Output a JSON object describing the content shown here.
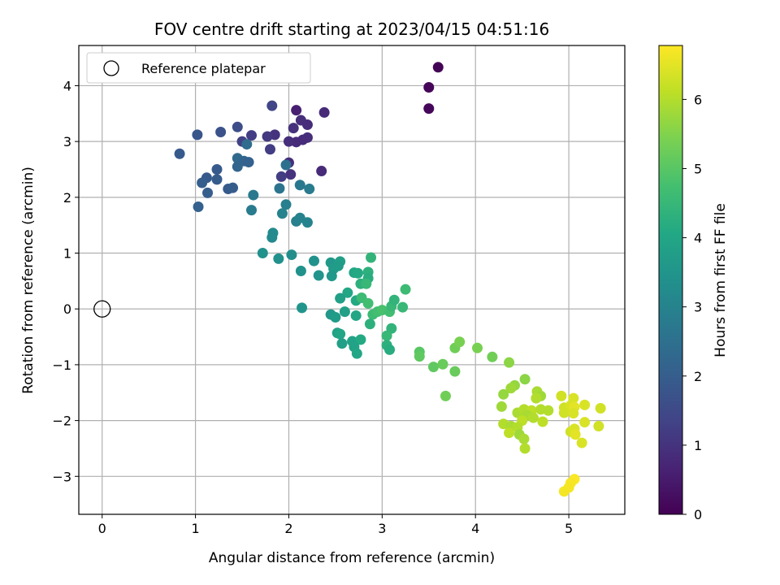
{
  "chart_data": {
    "type": "scatter",
    "title": "FOV centre drift starting at 2023/04/15 04:51:16",
    "xlabel": "Angular distance from reference (arcmin)",
    "ylabel": "Rotation from reference (arcmin)",
    "xlim": [
      -0.25,
      5.6
    ],
    "ylim": [
      -3.68,
      4.72
    ],
    "xticks": [
      0,
      1,
      2,
      3,
      4,
      5
    ],
    "yticks": [
      -3,
      -2,
      -1,
      0,
      1,
      2,
      3,
      4
    ],
    "grid": true,
    "legend": {
      "position": "top-left",
      "entries": [
        "Reference platepar"
      ]
    },
    "reference_point": {
      "x": 0,
      "y": 0,
      "label": "Reference platepar"
    },
    "colorbar": {
      "label": "Hours from first FF file",
      "colormap": "viridis",
      "range": [
        0,
        6.78
      ],
      "ticks": [
        0,
        1,
        2,
        3,
        4,
        5,
        6
      ]
    },
    "points": [
      {
        "x": 3.6,
        "y": 4.33,
        "c": 0.05
      },
      {
        "x": 3.5,
        "y": 3.97,
        "c": 0.1
      },
      {
        "x": 3.5,
        "y": 3.59,
        "c": 0.12
      },
      {
        "x": 2.08,
        "y": 3.56,
        "c": 0.6
      },
      {
        "x": 2.38,
        "y": 3.52,
        "c": 0.8
      },
      {
        "x": 2.13,
        "y": 3.38,
        "c": 0.9
      },
      {
        "x": 2.2,
        "y": 3.3,
        "c": 0.85
      },
      {
        "x": 2.05,
        "y": 3.24,
        "c": 0.95
      },
      {
        "x": 2.2,
        "y": 3.07,
        "c": 0.9
      },
      {
        "x": 2.15,
        "y": 3.03,
        "c": 0.85
      },
      {
        "x": 2.08,
        "y": 2.99,
        "c": 0.8
      },
      {
        "x": 2.0,
        "y": 3.0,
        "c": 0.9
      },
      {
        "x": 1.85,
        "y": 3.12,
        "c": 1.0
      },
      {
        "x": 1.77,
        "y": 3.09,
        "c": 1.1
      },
      {
        "x": 1.6,
        "y": 3.11,
        "c": 1.2
      },
      {
        "x": 1.5,
        "y": 3.0,
        "c": 1.3
      },
      {
        "x": 1.8,
        "y": 2.86,
        "c": 1.2
      },
      {
        "x": 2.0,
        "y": 2.62,
        "c": 0.9
      },
      {
        "x": 2.35,
        "y": 2.47,
        "c": 0.8
      },
      {
        "x": 2.02,
        "y": 2.41,
        "c": 1.0
      },
      {
        "x": 1.92,
        "y": 2.37,
        "c": 1.2
      },
      {
        "x": 1.82,
        "y": 3.64,
        "c": 1.4
      },
      {
        "x": 1.45,
        "y": 3.26,
        "c": 1.6
      },
      {
        "x": 1.27,
        "y": 3.17,
        "c": 1.7
      },
      {
        "x": 1.02,
        "y": 3.12,
        "c": 1.8
      },
      {
        "x": 0.83,
        "y": 2.78,
        "c": 1.9
      },
      {
        "x": 1.55,
        "y": 2.95,
        "c": 2.4
      },
      {
        "x": 1.45,
        "y": 2.7,
        "c": 2.3
      },
      {
        "x": 1.52,
        "y": 2.65,
        "c": 2.2
      },
      {
        "x": 1.57,
        "y": 2.63,
        "c": 2.1
      },
      {
        "x": 1.45,
        "y": 2.55,
        "c": 2.2
      },
      {
        "x": 1.23,
        "y": 2.5,
        "c": 1.9
      },
      {
        "x": 1.12,
        "y": 2.35,
        "c": 1.9
      },
      {
        "x": 1.07,
        "y": 2.26,
        "c": 2.0
      },
      {
        "x": 1.23,
        "y": 2.32,
        "c": 1.95
      },
      {
        "x": 1.35,
        "y": 2.15,
        "c": 1.9
      },
      {
        "x": 1.4,
        "y": 2.17,
        "c": 1.95
      },
      {
        "x": 1.13,
        "y": 2.08,
        "c": 2.0
      },
      {
        "x": 1.03,
        "y": 1.83,
        "c": 2.1
      },
      {
        "x": 1.62,
        "y": 2.04,
        "c": 2.7
      },
      {
        "x": 1.6,
        "y": 1.77,
        "c": 2.8
      },
      {
        "x": 1.97,
        "y": 2.58,
        "c": 2.5
      },
      {
        "x": 1.9,
        "y": 2.16,
        "c": 2.6
      },
      {
        "x": 2.12,
        "y": 2.22,
        "c": 2.7
      },
      {
        "x": 2.22,
        "y": 2.15,
        "c": 2.8
      },
      {
        "x": 1.97,
        "y": 1.87,
        "c": 2.9
      },
      {
        "x": 1.93,
        "y": 1.71,
        "c": 3.0
      },
      {
        "x": 2.08,
        "y": 1.57,
        "c": 2.9
      },
      {
        "x": 2.12,
        "y": 1.63,
        "c": 3.0
      },
      {
        "x": 2.2,
        "y": 1.55,
        "c": 3.0
      },
      {
        "x": 1.83,
        "y": 1.36,
        "c": 3.2
      },
      {
        "x": 1.82,
        "y": 1.28,
        "c": 3.2
      },
      {
        "x": 1.72,
        "y": 1.0,
        "c": 3.4
      },
      {
        "x": 1.89,
        "y": 0.9,
        "c": 3.4
      },
      {
        "x": 2.03,
        "y": 0.97,
        "c": 3.3
      },
      {
        "x": 2.13,
        "y": 0.68,
        "c": 3.4
      },
      {
        "x": 2.27,
        "y": 0.86,
        "c": 3.4
      },
      {
        "x": 2.32,
        "y": 0.6,
        "c": 3.5
      },
      {
        "x": 2.45,
        "y": 0.83,
        "c": 3.6
      },
      {
        "x": 2.48,
        "y": 0.72,
        "c": 3.7
      },
      {
        "x": 2.46,
        "y": 0.59,
        "c": 3.6
      },
      {
        "x": 2.55,
        "y": 0.85,
        "c": 3.8
      },
      {
        "x": 2.53,
        "y": 0.77,
        "c": 3.7
      },
      {
        "x": 2.7,
        "y": 0.65,
        "c": 4.0
      },
      {
        "x": 2.74,
        "y": 0.64,
        "c": 4.1
      },
      {
        "x": 2.85,
        "y": 0.66,
        "c": 4.3
      },
      {
        "x": 2.88,
        "y": 0.92,
        "c": 4.4
      },
      {
        "x": 2.85,
        "y": 0.55,
        "c": 4.2
      },
      {
        "x": 2.77,
        "y": 0.45,
        "c": 4.3
      },
      {
        "x": 2.83,
        "y": 0.45,
        "c": 4.5
      },
      {
        "x": 2.63,
        "y": 0.29,
        "c": 4.0
      },
      {
        "x": 2.55,
        "y": 0.19,
        "c": 3.8
      },
      {
        "x": 2.72,
        "y": 0.15,
        "c": 4.1
      },
      {
        "x": 2.14,
        "y": 0.02,
        "c": 3.5
      },
      {
        "x": 2.45,
        "y": -0.1,
        "c": 3.6
      },
      {
        "x": 2.5,
        "y": -0.15,
        "c": 3.7
      },
      {
        "x": 2.6,
        "y": -0.05,
        "c": 3.8
      },
      {
        "x": 2.72,
        "y": -0.12,
        "c": 4.0
      },
      {
        "x": 2.78,
        "y": 0.2,
        "c": 4.6
      },
      {
        "x": 2.85,
        "y": 0.1,
        "c": 4.7
      },
      {
        "x": 2.9,
        "y": -0.1,
        "c": 4.6
      },
      {
        "x": 2.95,
        "y": -0.05,
        "c": 4.7
      },
      {
        "x": 3.0,
        "y": -0.02,
        "c": 4.8
      },
      {
        "x": 3.08,
        "y": -0.05,
        "c": 4.7
      },
      {
        "x": 3.1,
        "y": 0.05,
        "c": 4.5
      },
      {
        "x": 3.13,
        "y": 0.16,
        "c": 4.4
      },
      {
        "x": 3.22,
        "y": 0.03,
        "c": 4.5
      },
      {
        "x": 3.25,
        "y": 0.35,
        "c": 4.6
      },
      {
        "x": 2.87,
        "y": -0.27,
        "c": 4.3
      },
      {
        "x": 2.52,
        "y": -0.43,
        "c": 3.9
      },
      {
        "x": 2.55,
        "y": -0.45,
        "c": 4.0
      },
      {
        "x": 2.68,
        "y": -0.58,
        "c": 3.9
      },
      {
        "x": 2.77,
        "y": -0.55,
        "c": 4.1
      },
      {
        "x": 2.57,
        "y": -0.62,
        "c": 3.8
      },
      {
        "x": 2.7,
        "y": -0.68,
        "c": 3.9
      },
      {
        "x": 2.73,
        "y": -0.8,
        "c": 4.0
      },
      {
        "x": 3.1,
        "y": -0.35,
        "c": 4.4
      },
      {
        "x": 3.05,
        "y": -0.48,
        "c": 4.5
      },
      {
        "x": 3.05,
        "y": -0.65,
        "c": 4.3
      },
      {
        "x": 3.08,
        "y": -0.73,
        "c": 4.2
      },
      {
        "x": 3.4,
        "y": -0.77,
        "c": 5.0
      },
      {
        "x": 3.4,
        "y": -0.85,
        "c": 5.1
      },
      {
        "x": 3.55,
        "y": -1.04,
        "c": 5.1
      },
      {
        "x": 3.65,
        "y": -0.99,
        "c": 5.2
      },
      {
        "x": 3.78,
        "y": -0.7,
        "c": 5.3
      },
      {
        "x": 3.83,
        "y": -0.59,
        "c": 5.4
      },
      {
        "x": 4.02,
        "y": -0.7,
        "c": 5.4
      },
      {
        "x": 4.18,
        "y": -0.86,
        "c": 5.3
      },
      {
        "x": 3.78,
        "y": -1.12,
        "c": 5.2
      },
      {
        "x": 3.68,
        "y": -1.56,
        "c": 5.3
      },
      {
        "x": 4.36,
        "y": -0.96,
        "c": 5.6
      },
      {
        "x": 4.42,
        "y": -1.37,
        "c": 5.7
      },
      {
        "x": 4.38,
        "y": -1.42,
        "c": 5.8
      },
      {
        "x": 4.3,
        "y": -1.53,
        "c": 5.7
      },
      {
        "x": 4.53,
        "y": -1.26,
        "c": 5.6
      },
      {
        "x": 4.66,
        "y": -1.48,
        "c": 5.9
      },
      {
        "x": 4.7,
        "y": -1.56,
        "c": 5.8
      },
      {
        "x": 4.65,
        "y": -1.6,
        "c": 6.0
      },
      {
        "x": 4.28,
        "y": -1.75,
        "c": 5.8
      },
      {
        "x": 4.45,
        "y": -1.86,
        "c": 5.9
      },
      {
        "x": 4.52,
        "y": -1.8,
        "c": 6.0
      },
      {
        "x": 4.6,
        "y": -1.82,
        "c": 6.1
      },
      {
        "x": 4.7,
        "y": -1.8,
        "c": 6.0
      },
      {
        "x": 4.78,
        "y": -1.82,
        "c": 6.0
      },
      {
        "x": 4.55,
        "y": -1.9,
        "c": 5.9
      },
      {
        "x": 4.5,
        "y": -2.0,
        "c": 6.1
      },
      {
        "x": 4.62,
        "y": -1.95,
        "c": 6.0
      },
      {
        "x": 4.72,
        "y": -2.02,
        "c": 6.1
      },
      {
        "x": 4.3,
        "y": -2.06,
        "c": 6.0
      },
      {
        "x": 4.38,
        "y": -2.1,
        "c": 5.9
      },
      {
        "x": 4.45,
        "y": -2.12,
        "c": 6.0
      },
      {
        "x": 4.36,
        "y": -2.22,
        "c": 6.1
      },
      {
        "x": 4.47,
        "y": -2.25,
        "c": 5.8
      },
      {
        "x": 4.52,
        "y": -2.33,
        "c": 5.9
      },
      {
        "x": 4.53,
        "y": -2.5,
        "c": 6.0
      },
      {
        "x": 4.92,
        "y": -1.56,
        "c": 6.3
      },
      {
        "x": 5.05,
        "y": -1.6,
        "c": 6.4
      },
      {
        "x": 4.95,
        "y": -1.77,
        "c": 6.3
      },
      {
        "x": 5.02,
        "y": -1.73,
        "c": 6.4
      },
      {
        "x": 5.06,
        "y": -1.76,
        "c": 6.5
      },
      {
        "x": 5.17,
        "y": -1.72,
        "c": 6.4
      },
      {
        "x": 4.95,
        "y": -1.86,
        "c": 6.3
      },
      {
        "x": 5.05,
        "y": -1.87,
        "c": 6.4
      },
      {
        "x": 5.34,
        "y": -1.78,
        "c": 6.3
      },
      {
        "x": 5.17,
        "y": -2.03,
        "c": 6.4
      },
      {
        "x": 5.02,
        "y": -2.2,
        "c": 6.3
      },
      {
        "x": 5.06,
        "y": -2.15,
        "c": 6.4
      },
      {
        "x": 5.07,
        "y": -2.25,
        "c": 6.5
      },
      {
        "x": 5.14,
        "y": -2.4,
        "c": 6.4
      },
      {
        "x": 5.32,
        "y": -2.1,
        "c": 6.3
      },
      {
        "x": 5.06,
        "y": -3.05,
        "c": 6.75
      },
      {
        "x": 5.02,
        "y": -3.12,
        "c": 6.72
      },
      {
        "x": 5.0,
        "y": -3.2,
        "c": 6.7
      },
      {
        "x": 4.95,
        "y": -3.27,
        "c": 6.68
      }
    ]
  }
}
